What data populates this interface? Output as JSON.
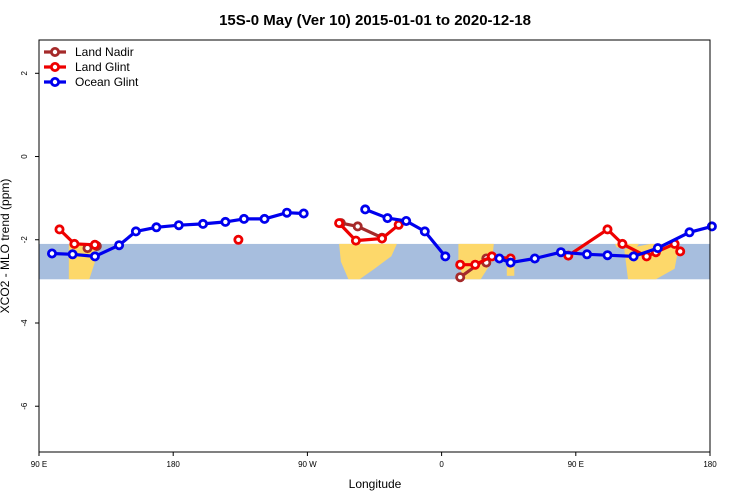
{
  "chart_data": {
    "type": "line",
    "title": "15S-0 May (Ver 10)   2015-01-01 to 2020-12-18",
    "xlabel": "Longitude",
    "ylabel": "XCO2 - MLO trend (ppm)",
    "xlim": [
      90,
      450
    ],
    "ylim": [
      -7.1,
      2.8
    ],
    "x_ticks": [
      {
        "value": 90,
        "label": "90 E"
      },
      {
        "value": 162,
        "label": "180"
      },
      {
        "value": 234,
        "label": "90 W"
      },
      {
        "value": 306,
        "label": "0"
      },
      {
        "value": 378,
        "label": "90 E"
      },
      {
        "value": 450,
        "label": "180"
      }
    ],
    "y_ticks": [
      {
        "value": 2,
        "label": "2"
      },
      {
        "value": 0,
        "label": "0"
      },
      {
        "value": -2,
        "label": "-2"
      },
      {
        "value": -4,
        "label": "-4"
      },
      {
        "value": -6,
        "label": "-6"
      }
    ],
    "grid": false,
    "legend_position": "top-left",
    "band": {
      "y_top": -2.1,
      "y_bottom": -2.95,
      "ocean_color": "#a7bede",
      "land_color": "#fdd86a"
    },
    "series": [
      {
        "name": "Land Nadir",
        "color": "#a52a2a",
        "segments": [
          [
            [
              116,
              -2.2
            ],
            [
              121,
              -2.15
            ]
          ],
          [
            [
              252,
              -1.6
            ],
            [
              261,
              -1.68
            ],
            [
              274,
              -1.95
            ]
          ],
          [
            [
              316,
              -2.9
            ],
            [
              330,
              -2.45
            ],
            [
              330,
              -2.55
            ]
          ]
        ]
      },
      {
        "name": "Land Glint",
        "color": "#ee0000",
        "segments": [
          [
            [
              101,
              -1.75
            ],
            [
              109,
              -2.1
            ],
            [
              120,
              -2.12
            ]
          ],
          [
            [
              197,
              -2.0
            ]
          ],
          [
            [
              251,
              -1.6
            ],
            [
              260,
              -2.02
            ],
            [
              274,
              -1.97
            ],
            [
              283,
              -1.64
            ]
          ],
          [
            [
              316,
              -2.6
            ],
            [
              324,
              -2.6
            ],
            [
              333,
              -2.4
            ],
            [
              343,
              -2.45
            ]
          ],
          [
            [
              374,
              -2.38
            ],
            [
              395,
              -1.75
            ],
            [
              403,
              -2.1
            ],
            [
              416,
              -2.4
            ],
            [
              421,
              -2.3
            ],
            [
              431,
              -2.1
            ],
            [
              434,
              -2.28
            ]
          ]
        ]
      },
      {
        "name": "Ocean Glint",
        "color": "#0000ee",
        "segments": [
          [
            [
              97,
              -2.33
            ],
            [
              108,
              -2.35
            ],
            [
              120,
              -2.4
            ],
            [
              133,
              -2.13
            ],
            [
              142,
              -1.8
            ],
            [
              153,
              -1.7
            ],
            [
              165,
              -1.65
            ],
            [
              178,
              -1.62
            ],
            [
              190,
              -1.57
            ],
            [
              200,
              -1.5
            ],
            [
              211,
              -1.5
            ],
            [
              223,
              -1.35
            ],
            [
              232,
              -1.37
            ]
          ],
          [
            [
              265,
              -1.27
            ],
            [
              277,
              -1.48
            ],
            [
              287,
              -1.55
            ],
            [
              297,
              -1.8
            ],
            [
              308,
              -2.4
            ]
          ],
          [
            [
              337,
              -2.45
            ],
            [
              343,
              -2.55
            ],
            [
              356,
              -2.45
            ],
            [
              370,
              -2.3
            ],
            [
              384,
              -2.35
            ],
            [
              395,
              -2.37
            ],
            [
              409,
              -2.4
            ],
            [
              422,
              -2.2
            ],
            [
              439,
              -1.82
            ],
            [
              451,
              -1.68
            ]
          ]
        ]
      }
    ]
  }
}
